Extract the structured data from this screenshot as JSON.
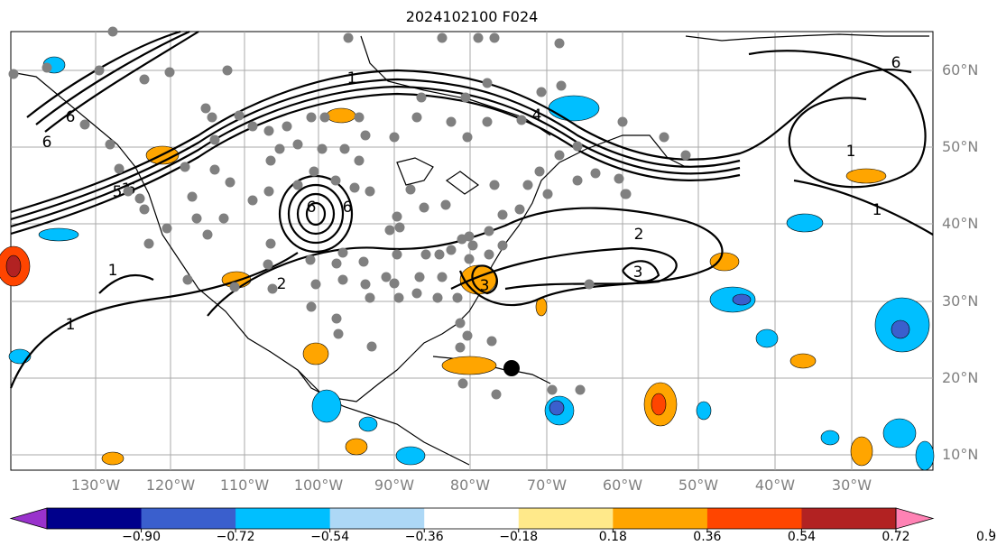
{
  "title": "2024102100 F024",
  "latitudes": [
    "60°N",
    "50°N",
    "40°N",
    "30°N",
    "20°N",
    "10°N"
  ],
  "longitudes": [
    "130°W",
    "120°W",
    "110°W",
    "100°W",
    "90°W",
    "80°W",
    "70°W",
    "60°W",
    "50°W",
    "40°W",
    "30°W"
  ],
  "colorbar": {
    "ticks": [
      "−0.90",
      "−0.72",
      "−0.54",
      "−0.36",
      "−0.18",
      "0.18",
      "0.36",
      "0.54",
      "0.72",
      "0.90"
    ],
    "colors": [
      "#9932cc",
      "#00008b",
      "#3a5fcd",
      "#00bfff",
      "#add8f6",
      "#ffffff",
      "#ffe98a",
      "#ffa500",
      "#ff4500",
      "#b22222",
      "#ff82b4"
    ]
  },
  "contour_labels": [
    "6",
    "6",
    "5",
    "6",
    "1",
    "4",
    "6",
    "6",
    "1",
    "1",
    "2",
    "3",
    "3",
    "1",
    "1",
    "2",
    "6",
    "1"
  ],
  "colors": {
    "land_outline": "#000000",
    "grid": "#aaaaaa",
    "station": "#808080",
    "storm": "#000000"
  }
}
